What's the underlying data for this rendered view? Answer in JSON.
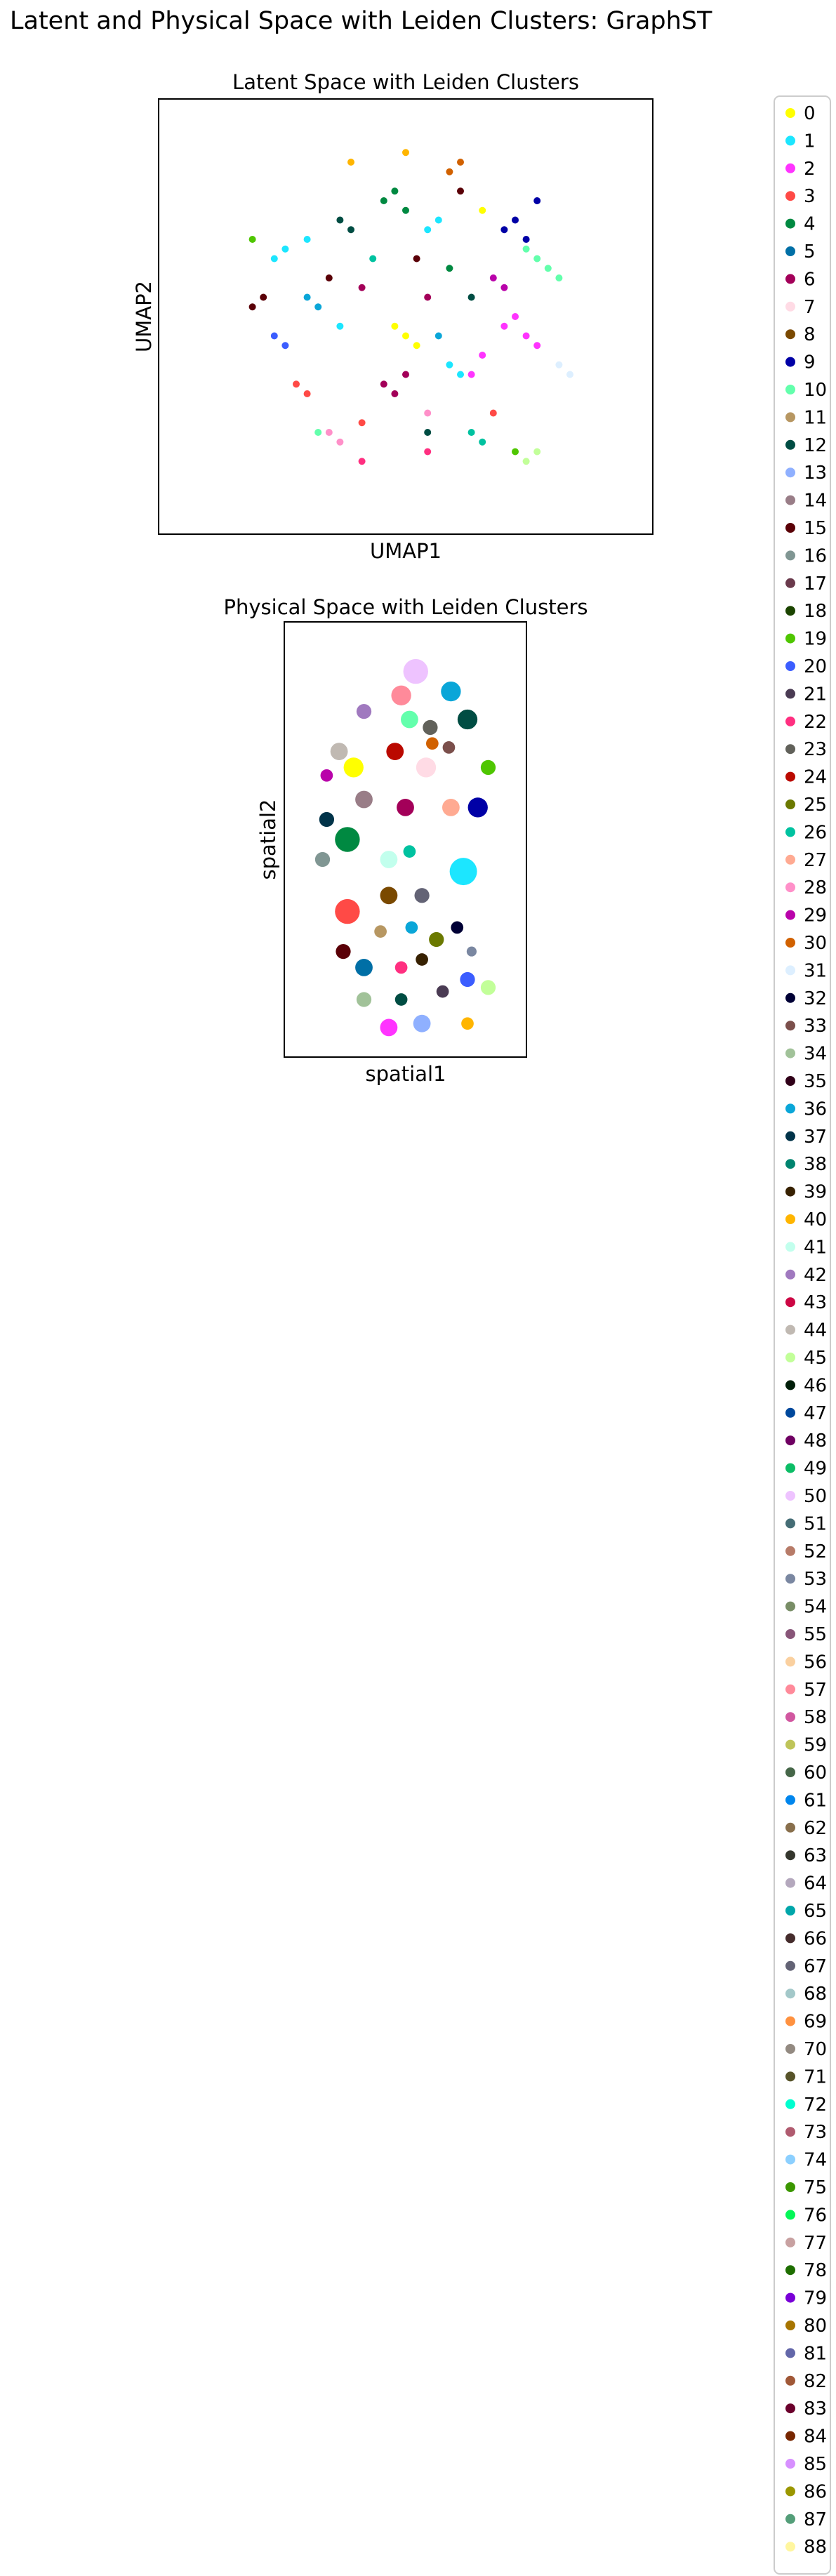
{
  "figure": {
    "suptitle": "Latent and Physical Space with Leiden Clusters: GraphST"
  },
  "chart_data": [
    {
      "type": "scatter",
      "title": "Latent Space with Leiden Clusters",
      "xlabel": "UMAP1",
      "ylabel": "UMAP2",
      "xlim": [
        -1,
        1
      ],
      "ylim": [
        -1,
        1
      ],
      "grid": false,
      "ticks": "none",
      "note": "Points form many small fragmented clusters spread in a roughly circular cloud; each point colored by Leiden cluster 0-88.",
      "series": [
        {
          "cluster": "1",
          "points": [
            [
              -0.55,
              0.35
            ],
            [
              -0.6,
              0.3
            ],
            [
              -0.45,
              0.4
            ],
            [
              0.2,
              -0.25
            ],
            [
              0.25,
              -0.3
            ],
            [
              -0.3,
              -0.05
            ],
            [
              0.1,
              0.45
            ],
            [
              0.15,
              0.5
            ]
          ]
        },
        {
          "cluster": "2",
          "points": [
            [
              0.45,
              -0.05
            ],
            [
              0.5,
              0.0
            ],
            [
              0.55,
              -0.1
            ],
            [
              0.3,
              -0.3
            ],
            [
              0.35,
              -0.2
            ],
            [
              0.6,
              -0.15
            ]
          ]
        },
        {
          "cluster": "6",
          "points": [
            [
              -0.1,
              -0.35
            ],
            [
              -0.05,
              -0.4
            ],
            [
              0.0,
              -0.3
            ],
            [
              0.1,
              0.1
            ],
            [
              -0.2,
              0.15
            ]
          ]
        },
        {
          "cluster": "10",
          "points": [
            [
              0.6,
              0.3
            ],
            [
              0.65,
              0.25
            ],
            [
              0.55,
              0.35
            ],
            [
              -0.4,
              -0.6
            ],
            [
              0.7,
              0.2
            ]
          ]
        },
        {
          "cluster": "0",
          "points": [
            [
              0.0,
              -0.1
            ],
            [
              0.05,
              -0.15
            ],
            [
              -0.05,
              -0.05
            ],
            [
              0.35,
              0.55
            ]
          ]
        },
        {
          "cluster": "4",
          "points": [
            [
              -0.1,
              0.6
            ],
            [
              -0.05,
              0.65
            ],
            [
              0.0,
              0.55
            ],
            [
              0.2,
              0.25
            ]
          ]
        },
        {
          "cluster": "9",
          "points": [
            [
              0.45,
              0.45
            ],
            [
              0.5,
              0.5
            ],
            [
              0.55,
              0.4
            ],
            [
              0.6,
              0.6
            ]
          ]
        },
        {
          "cluster": "3",
          "points": [
            [
              -0.5,
              -0.35
            ],
            [
              -0.45,
              -0.4
            ],
            [
              0.4,
              -0.5
            ],
            [
              -0.2,
              -0.55
            ]
          ]
        },
        {
          "cluster": "12",
          "points": [
            [
              -0.3,
              0.5
            ],
            [
              -0.25,
              0.45
            ],
            [
              0.1,
              -0.6
            ],
            [
              0.3,
              0.1
            ]
          ]
        },
        {
          "cluster": "15",
          "points": [
            [
              -0.65,
              0.1
            ],
            [
              -0.7,
              0.05
            ],
            [
              0.05,
              0.3
            ],
            [
              -0.35,
              0.2
            ],
            [
              0.25,
              0.65
            ]
          ]
        },
        {
          "cluster": "20",
          "points": [
            [
              -0.55,
              -0.15
            ],
            [
              -0.6,
              -0.1
            ]
          ]
        },
        {
          "cluster": "26",
          "points": [
            [
              0.3,
              -0.6
            ],
            [
              0.35,
              -0.65
            ],
            [
              -0.15,
              0.3
            ]
          ]
        },
        {
          "cluster": "28",
          "points": [
            [
              -0.35,
              -0.6
            ],
            [
              -0.3,
              -0.65
            ],
            [
              0.1,
              -0.5
            ]
          ]
        },
        {
          "cluster": "19",
          "points": [
            [
              -0.7,
              0.4
            ],
            [
              0.5,
              -0.7
            ]
          ]
        },
        {
          "cluster": "31",
          "points": [
            [
              0.7,
              -0.25
            ],
            [
              0.75,
              -0.3
            ]
          ]
        },
        {
          "cluster": "30",
          "points": [
            [
              0.2,
              0.75
            ],
            [
              0.25,
              0.8
            ]
          ]
        },
        {
          "cluster": "36",
          "points": [
            [
              -0.4,
              0.05
            ],
            [
              -0.45,
              0.1
            ],
            [
              0.15,
              -0.1
            ]
          ]
        },
        {
          "cluster": "29",
          "points": [
            [
              0.4,
              0.2
            ],
            [
              0.45,
              0.15
            ]
          ]
        },
        {
          "cluster": "22",
          "points": [
            [
              -0.2,
              -0.75
            ],
            [
              0.1,
              -0.7
            ]
          ]
        },
        {
          "cluster": "45",
          "points": [
            [
              0.55,
              -0.75
            ],
            [
              0.6,
              -0.7
            ]
          ]
        },
        {
          "cluster": "40",
          "points": [
            [
              -0.25,
              0.8
            ],
            [
              0.0,
              0.85
            ]
          ]
        }
      ]
    },
    {
      "type": "scatter",
      "title": "Physical Space with Leiden Clusters",
      "xlabel": "spatial1",
      "ylabel": "spatial2",
      "xlim": [
        0,
        1
      ],
      "ylim": [
        0,
        1
      ],
      "grid": false,
      "ticks": "none",
      "note": "Tissue section shape filled with contiguous Leiden cluster regions.",
      "regions": [
        {
          "cluster": "50",
          "center": [
            0.55,
            0.92
          ],
          "size": 0.1
        },
        {
          "cluster": "36",
          "center": [
            0.72,
            0.87
          ],
          "size": 0.08
        },
        {
          "cluster": "57",
          "center": [
            0.48,
            0.86
          ],
          "size": 0.08
        },
        {
          "cluster": "12",
          "center": [
            0.8,
            0.8
          ],
          "size": 0.08
        },
        {
          "cluster": "10",
          "center": [
            0.52,
            0.8
          ],
          "size": 0.07
        },
        {
          "cluster": "42",
          "center": [
            0.3,
            0.82
          ],
          "size": 0.06
        },
        {
          "cluster": "44",
          "center": [
            0.18,
            0.72
          ],
          "size": 0.07
        },
        {
          "cluster": "0",
          "center": [
            0.25,
            0.68
          ],
          "size": 0.08
        },
        {
          "cluster": "24",
          "center": [
            0.45,
            0.72
          ],
          "size": 0.07
        },
        {
          "cluster": "7",
          "center": [
            0.6,
            0.68
          ],
          "size": 0.08
        },
        {
          "cluster": "23",
          "center": [
            0.62,
            0.78
          ],
          "size": 0.06
        },
        {
          "cluster": "30",
          "center": [
            0.63,
            0.74
          ],
          "size": 0.05
        },
        {
          "cluster": "33",
          "center": [
            0.71,
            0.73
          ],
          "size": 0.05
        },
        {
          "cluster": "9",
          "center": [
            0.85,
            0.58
          ],
          "size": 0.08
        },
        {
          "cluster": "19",
          "center": [
            0.9,
            0.68
          ],
          "size": 0.06
        },
        {
          "cluster": "27",
          "center": [
            0.72,
            0.58
          ],
          "size": 0.07
        },
        {
          "cluster": "29",
          "center": [
            0.12,
            0.66
          ],
          "size": 0.05
        },
        {
          "cluster": "14",
          "center": [
            0.3,
            0.6
          ],
          "size": 0.07
        },
        {
          "cluster": "37",
          "center": [
            0.12,
            0.55
          ],
          "size": 0.06
        },
        {
          "cluster": "16",
          "center": [
            0.1,
            0.45
          ],
          "size": 0.06
        },
        {
          "cluster": "4",
          "center": [
            0.22,
            0.5
          ],
          "size": 0.1
        },
        {
          "cluster": "6",
          "center": [
            0.5,
            0.58
          ],
          "size": 0.07
        },
        {
          "cluster": "41",
          "center": [
            0.42,
            0.45
          ],
          "size": 0.07
        },
        {
          "cluster": "26",
          "center": [
            0.52,
            0.47
          ],
          "size": 0.05
        },
        {
          "cluster": "1",
          "center": [
            0.78,
            0.42
          ],
          "size": 0.11
        },
        {
          "cluster": "3",
          "center": [
            0.22,
            0.32
          ],
          "size": 0.1
        },
        {
          "cluster": "8",
          "center": [
            0.42,
            0.36
          ],
          "size": 0.07
        },
        {
          "cluster": "67",
          "center": [
            0.58,
            0.36
          ],
          "size": 0.06
        },
        {
          "cluster": "32",
          "center": [
            0.75,
            0.28
          ],
          "size": 0.05
        },
        {
          "cluster": "11",
          "center": [
            0.38,
            0.27
          ],
          "size": 0.05
        },
        {
          "cluster": "36",
          "center": [
            0.53,
            0.28
          ],
          "size": 0.05
        },
        {
          "cluster": "25",
          "center": [
            0.65,
            0.25
          ],
          "size": 0.06
        },
        {
          "cluster": "53",
          "center": [
            0.82,
            0.22
          ],
          "size": 0.04
        },
        {
          "cluster": "15",
          "center": [
            0.2,
            0.22
          ],
          "size": 0.06
        },
        {
          "cluster": "5",
          "center": [
            0.3,
            0.18
          ],
          "size": 0.07
        },
        {
          "cluster": "22",
          "center": [
            0.48,
            0.18
          ],
          "size": 0.05
        },
        {
          "cluster": "39",
          "center": [
            0.58,
            0.2
          ],
          "size": 0.05
        },
        {
          "cluster": "34",
          "center": [
            0.3,
            0.1
          ],
          "size": 0.06
        },
        {
          "cluster": "12",
          "center": [
            0.48,
            0.1
          ],
          "size": 0.05
        },
        {
          "cluster": "20",
          "center": [
            0.8,
            0.15
          ],
          "size": 0.06
        },
        {
          "cluster": "45",
          "center": [
            0.9,
            0.13
          ],
          "size": 0.06
        },
        {
          "cluster": "21",
          "center": [
            0.68,
            0.12
          ],
          "size": 0.05
        },
        {
          "cluster": "2",
          "center": [
            0.42,
            0.03
          ],
          "size": 0.07
        },
        {
          "cluster": "13",
          "center": [
            0.58,
            0.04
          ],
          "size": 0.07
        },
        {
          "cluster": "40",
          "center": [
            0.8,
            0.04
          ],
          "size": 0.05
        }
      ]
    }
  ],
  "legend": {
    "placement": "right",
    "entries": [
      {
        "label": "0",
        "color": "#ffff00"
      },
      {
        "label": "1",
        "color": "#1ce6ff"
      },
      {
        "label": "2",
        "color": "#ff34ff"
      },
      {
        "label": "3",
        "color": "#ff4a46"
      },
      {
        "label": "4",
        "color": "#008941"
      },
      {
        "label": "5",
        "color": "#006fa6"
      },
      {
        "label": "6",
        "color": "#a30059"
      },
      {
        "label": "7",
        "color": "#ffdbe5"
      },
      {
        "label": "8",
        "color": "#7a4900"
      },
      {
        "label": "9",
        "color": "#0000a6"
      },
      {
        "label": "10",
        "color": "#63ffac"
      },
      {
        "label": "11",
        "color": "#b79762"
      },
      {
        "label": "12",
        "color": "#004d43"
      },
      {
        "label": "13",
        "color": "#8fb0ff"
      },
      {
        "label": "14",
        "color": "#997d87"
      },
      {
        "label": "15",
        "color": "#5a0007"
      },
      {
        "label": "16",
        "color": "#809693"
      },
      {
        "label": "17",
        "color": "#6a3a4c"
      },
      {
        "label": "18",
        "color": "#1b4400"
      },
      {
        "label": "19",
        "color": "#4fc601"
      },
      {
        "label": "20",
        "color": "#3b5dff"
      },
      {
        "label": "21",
        "color": "#4a3b53"
      },
      {
        "label": "22",
        "color": "#ff2f80"
      },
      {
        "label": "23",
        "color": "#61615a"
      },
      {
        "label": "24",
        "color": "#ba0900"
      },
      {
        "label": "25",
        "color": "#6b7900"
      },
      {
        "label": "26",
        "color": "#00c2a0"
      },
      {
        "label": "27",
        "color": "#ffaa92"
      },
      {
        "label": "28",
        "color": "#ff90c9"
      },
      {
        "label": "29",
        "color": "#b903aa"
      },
      {
        "label": "30",
        "color": "#d16100"
      },
      {
        "label": "31",
        "color": "#ddefff"
      },
      {
        "label": "32",
        "color": "#000035"
      },
      {
        "label": "33",
        "color": "#7b4f4b"
      },
      {
        "label": "34",
        "color": "#a1c299"
      },
      {
        "label": "35",
        "color": "#300018"
      },
      {
        "label": "36",
        "color": "#0aa6d8"
      },
      {
        "label": "37",
        "color": "#013349"
      },
      {
        "label": "38",
        "color": "#00846f"
      },
      {
        "label": "39",
        "color": "#372101"
      },
      {
        "label": "40",
        "color": "#ffb500"
      },
      {
        "label": "41",
        "color": "#c2ffed"
      },
      {
        "label": "42",
        "color": "#a079bf"
      },
      {
        "label": "43",
        "color": "#cc0744"
      },
      {
        "label": "44",
        "color": "#c0b9b2"
      },
      {
        "label": "45",
        "color": "#c2ff99"
      },
      {
        "label": "46",
        "color": "#001e09"
      },
      {
        "label": "47",
        "color": "#00489c"
      },
      {
        "label": "48",
        "color": "#6f0062"
      },
      {
        "label": "49",
        "color": "#0cbd66"
      },
      {
        "label": "50",
        "color": "#eec3ff"
      },
      {
        "label": "51",
        "color": "#456d75"
      },
      {
        "label": "52",
        "color": "#b77b68"
      },
      {
        "label": "53",
        "color": "#7a87a1"
      },
      {
        "label": "54",
        "color": "#788d66"
      },
      {
        "label": "55",
        "color": "#885578"
      },
      {
        "label": "56",
        "color": "#fad09f"
      },
      {
        "label": "57",
        "color": "#ff8a9a"
      },
      {
        "label": "58",
        "color": "#d157a0"
      },
      {
        "label": "59",
        "color": "#bec459"
      },
      {
        "label": "60",
        "color": "#456648"
      },
      {
        "label": "61",
        "color": "#0086ed"
      },
      {
        "label": "62",
        "color": "#886f4c"
      },
      {
        "label": "63",
        "color": "#34362d"
      },
      {
        "label": "64",
        "color": "#b4a8bd"
      },
      {
        "label": "65",
        "color": "#00a6aa"
      },
      {
        "label": "66",
        "color": "#452c2c"
      },
      {
        "label": "67",
        "color": "#636375"
      },
      {
        "label": "68",
        "color": "#a3c8c9"
      },
      {
        "label": "69",
        "color": "#ff913f"
      },
      {
        "label": "70",
        "color": "#938a81"
      },
      {
        "label": "71",
        "color": "#575329"
      },
      {
        "label": "72",
        "color": "#00fecf"
      },
      {
        "label": "73",
        "color": "#b05b6f"
      },
      {
        "label": "74",
        "color": "#8cd0ff"
      },
      {
        "label": "75",
        "color": "#3b9700"
      },
      {
        "label": "76",
        "color": "#04f757"
      },
      {
        "label": "77",
        "color": "#c8a1a1"
      },
      {
        "label": "78",
        "color": "#1e6e00"
      },
      {
        "label": "79",
        "color": "#7900d7"
      },
      {
        "label": "80",
        "color": "#a77500"
      },
      {
        "label": "81",
        "color": "#6367a9"
      },
      {
        "label": "82",
        "color": "#a05837"
      },
      {
        "label": "83",
        "color": "#6b002c"
      },
      {
        "label": "84",
        "color": "#772600"
      },
      {
        "label": "85",
        "color": "#d790ff"
      },
      {
        "label": "86",
        "color": "#9b9700"
      },
      {
        "label": "87",
        "color": "#549e79"
      },
      {
        "label": "88",
        "color": "#fff69f"
      }
    ]
  }
}
